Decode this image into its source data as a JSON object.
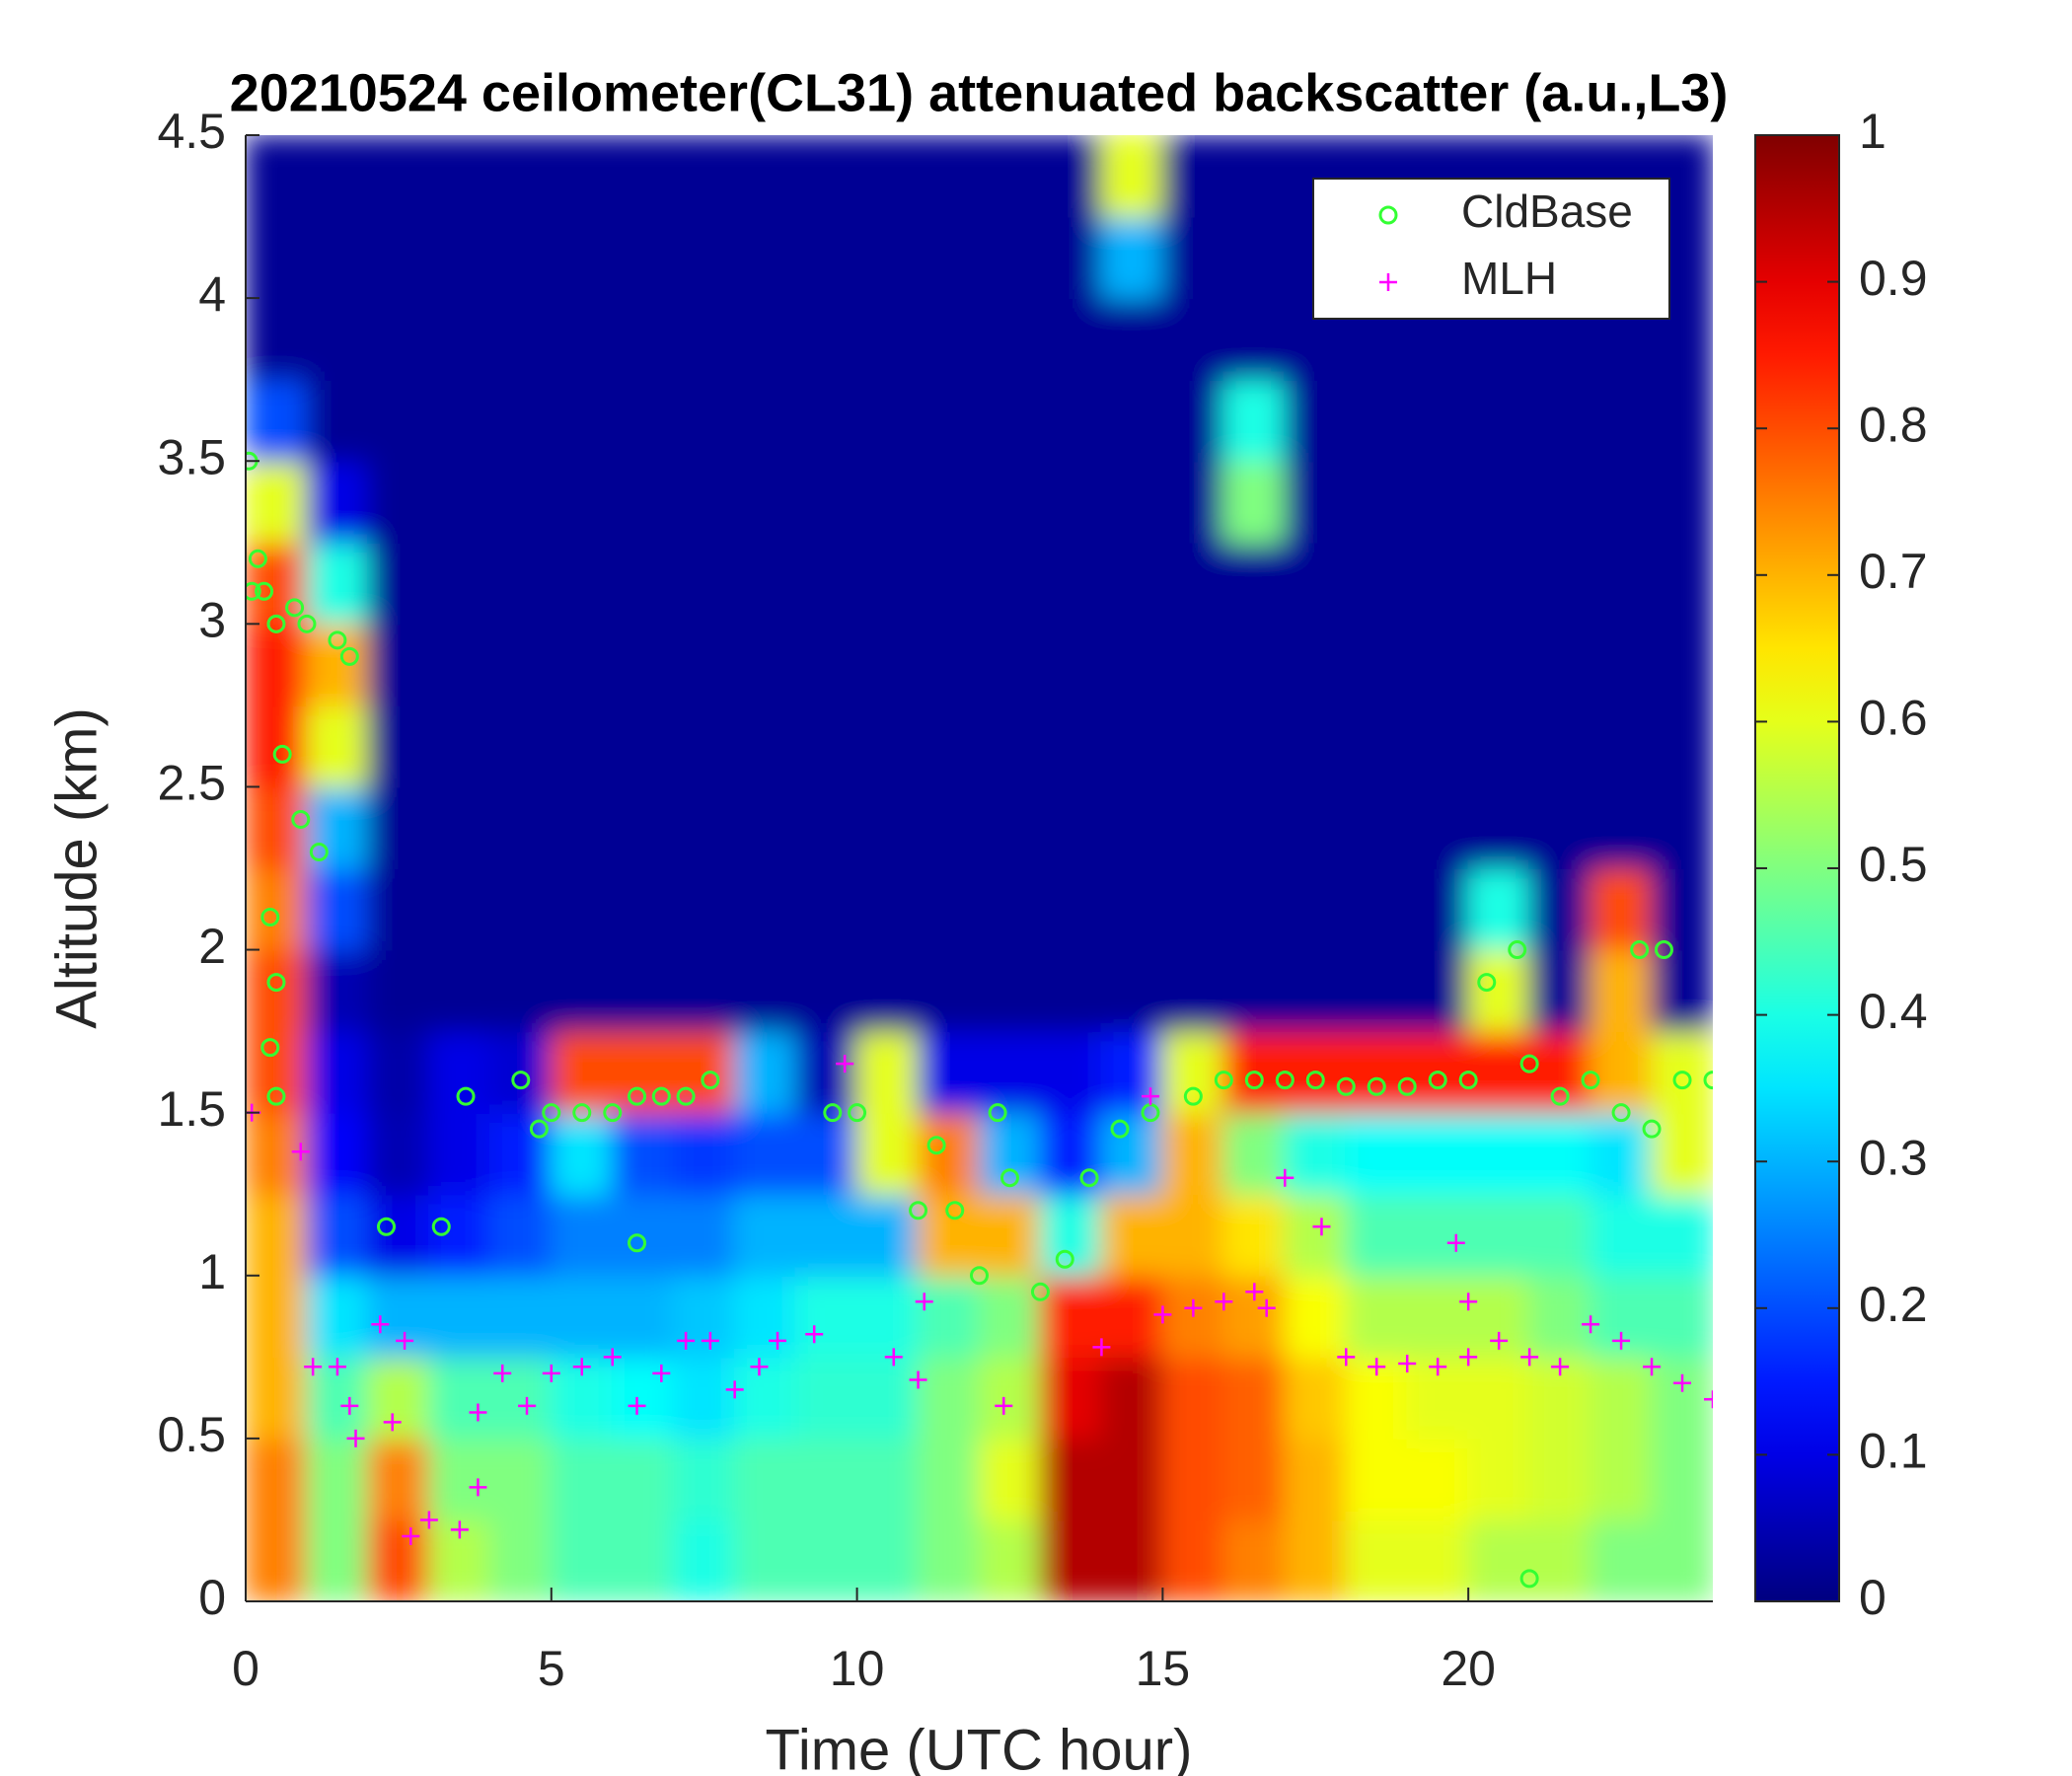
{
  "chart_data": {
    "type": "heatmap",
    "title": "20210524 ceilometer(CL31) attenuated backscatter (a.u.,L3)",
    "xlabel": "Time (UTC hour)",
    "ylabel": "Altitude (km)",
    "colormap": "jet",
    "xlim": [
      0,
      24
    ],
    "xticks": [
      0,
      5,
      10,
      15,
      20
    ],
    "ylim": [
      0,
      4.5
    ],
    "yticks": [
      0,
      0.5,
      1,
      1.5,
      2,
      2.5,
      3,
      3.5,
      4,
      4.5
    ],
    "clim": [
      0,
      1
    ],
    "cticks": [
      0,
      0.1,
      0.2,
      0.3,
      0.4,
      0.5,
      0.6,
      0.7,
      0.8,
      0.9,
      1
    ],
    "legend": "upper right",
    "x": [
      0.5,
      1.5,
      2.5,
      3.5,
      4.5,
      5.5,
      6.5,
      7.5,
      8.5,
      9.5,
      10.5,
      11.5,
      12.5,
      13.5,
      14.5,
      15.5,
      16.5,
      17.5,
      18.5,
      19.5,
      20.5,
      21.5,
      22.5,
      23.5
    ],
    "y": [
      0.125,
      0.375,
      0.625,
      0.875,
      1.125,
      1.375,
      1.625,
      1.875,
      2.125,
      2.375,
      2.625,
      2.875,
      3.125,
      3.375,
      3.625,
      3.875,
      4.125,
      4.375
    ],
    "z": [
      [
        0.75,
        0.5,
        0.8,
        0.55,
        0.5,
        0.45,
        0.45,
        0.4,
        0.45,
        0.45,
        0.45,
        0.5,
        0.55,
        0.95,
        0.95,
        0.8,
        0.75,
        0.7,
        0.6,
        0.6,
        0.55,
        0.55,
        0.5,
        0.5
      ],
      [
        0.75,
        0.5,
        0.75,
        0.5,
        0.5,
        0.45,
        0.45,
        0.42,
        0.45,
        0.45,
        0.45,
        0.5,
        0.6,
        0.95,
        0.95,
        0.8,
        0.78,
        0.7,
        0.62,
        0.62,
        0.6,
        0.58,
        0.55,
        0.5
      ],
      [
        0.7,
        0.45,
        0.55,
        0.45,
        0.45,
        0.4,
        0.38,
        0.35,
        0.4,
        0.42,
        0.42,
        0.5,
        0.55,
        0.9,
        0.95,
        0.8,
        0.78,
        0.68,
        0.62,
        0.6,
        0.6,
        0.58,
        0.55,
        0.5
      ],
      [
        0.7,
        0.35,
        0.3,
        0.3,
        0.3,
        0.3,
        0.3,
        0.32,
        0.35,
        0.4,
        0.4,
        0.45,
        0.5,
        0.85,
        0.85,
        0.75,
        0.72,
        0.62,
        0.55,
        0.55,
        0.55,
        0.5,
        0.45,
        0.45
      ],
      [
        0.7,
        0.2,
        0.1,
        0.15,
        0.2,
        0.25,
        0.25,
        0.25,
        0.3,
        0.3,
        0.3,
        0.7,
        0.7,
        0.4,
        0.7,
        0.7,
        0.65,
        0.55,
        0.45,
        0.45,
        0.45,
        0.45,
        0.4,
        0.4
      ],
      [
        0.75,
        0.12,
        0.05,
        0.1,
        0.15,
        0.35,
        0.2,
        0.18,
        0.2,
        0.2,
        0.6,
        0.75,
        0.3,
        0.15,
        0.3,
        0.7,
        0.5,
        0.4,
        0.38,
        0.38,
        0.38,
        0.38,
        0.35,
        0.6
      ],
      [
        0.8,
        0.1,
        0.04,
        0.1,
        0.08,
        0.8,
        0.8,
        0.8,
        0.3,
        0.05,
        0.6,
        0.1,
        0.1,
        0.1,
        0.15,
        0.6,
        0.85,
        0.85,
        0.85,
        0.85,
        0.85,
        0.85,
        0.7,
        0.6
      ],
      [
        0.8,
        0.05,
        0.02,
        0.02,
        0.02,
        0.02,
        0.02,
        0.02,
        0.02,
        0.02,
        0.02,
        0.02,
        0.02,
        0.02,
        0.02,
        0.02,
        0.02,
        0.02,
        0.02,
        0.02,
        0.6,
        0.02,
        0.7,
        0.02
      ],
      [
        0.75,
        0.2,
        0.02,
        0.02,
        0.02,
        0.02,
        0.02,
        0.02,
        0.02,
        0.02,
        0.02,
        0.02,
        0.02,
        0.02,
        0.02,
        0.02,
        0.02,
        0.02,
        0.02,
        0.02,
        0.4,
        0.02,
        0.8,
        0.02
      ],
      [
        0.8,
        0.3,
        0.02,
        0.02,
        0.02,
        0.02,
        0.02,
        0.02,
        0.02,
        0.02,
        0.02,
        0.02,
        0.02,
        0.02,
        0.02,
        0.02,
        0.02,
        0.02,
        0.02,
        0.02,
        0.02,
        0.02,
        0.02,
        0.02
      ],
      [
        0.85,
        0.6,
        0.02,
        0.02,
        0.02,
        0.02,
        0.02,
        0.02,
        0.02,
        0.02,
        0.02,
        0.02,
        0.02,
        0.02,
        0.02,
        0.02,
        0.02,
        0.02,
        0.02,
        0.02,
        0.02,
        0.02,
        0.02,
        0.02
      ],
      [
        0.85,
        0.7,
        0.02,
        0.02,
        0.02,
        0.02,
        0.02,
        0.02,
        0.02,
        0.02,
        0.02,
        0.02,
        0.02,
        0.02,
        0.02,
        0.02,
        0.02,
        0.02,
        0.02,
        0.02,
        0.02,
        0.02,
        0.02,
        0.02
      ],
      [
        0.8,
        0.4,
        0.02,
        0.02,
        0.02,
        0.02,
        0.02,
        0.02,
        0.02,
        0.02,
        0.02,
        0.02,
        0.02,
        0.02,
        0.02,
        0.02,
        0.02,
        0.02,
        0.02,
        0.02,
        0.02,
        0.02,
        0.02,
        0.02
      ],
      [
        0.6,
        0.1,
        0.02,
        0.02,
        0.02,
        0.02,
        0.02,
        0.02,
        0.02,
        0.02,
        0.02,
        0.02,
        0.02,
        0.02,
        0.02,
        0.02,
        0.5,
        0.02,
        0.02,
        0.02,
        0.02,
        0.02,
        0.02,
        0.02
      ],
      [
        0.2,
        0.02,
        0.02,
        0.02,
        0.02,
        0.02,
        0.02,
        0.02,
        0.02,
        0.02,
        0.02,
        0.02,
        0.02,
        0.02,
        0.02,
        0.02,
        0.4,
        0.02,
        0.02,
        0.02,
        0.02,
        0.02,
        0.02,
        0.02
      ],
      [
        0.02,
        0.02,
        0.02,
        0.02,
        0.02,
        0.02,
        0.02,
        0.02,
        0.02,
        0.02,
        0.02,
        0.02,
        0.02,
        0.02,
        0.02,
        0.02,
        0.02,
        0.02,
        0.02,
        0.02,
        0.02,
        0.02,
        0.02,
        0.02
      ],
      [
        0.02,
        0.02,
        0.02,
        0.02,
        0.02,
        0.02,
        0.02,
        0.02,
        0.02,
        0.02,
        0.02,
        0.02,
        0.02,
        0.02,
        0.3,
        0.02,
        0.02,
        0.02,
        0.02,
        0.02,
        0.02,
        0.02,
        0.02,
        0.02
      ],
      [
        0.02,
        0.02,
        0.02,
        0.02,
        0.02,
        0.02,
        0.02,
        0.02,
        0.02,
        0.02,
        0.02,
        0.02,
        0.02,
        0.02,
        0.6,
        0.02,
        0.02,
        0.02,
        0.02,
        0.02,
        0.02,
        0.02,
        0.02,
        0.02
      ]
    ],
    "series": [
      {
        "name": "CldBase",
        "color": "#33ff33",
        "marker": "circle",
        "x": [
          0.05,
          0.1,
          0.2,
          0.3,
          0.5,
          0.8,
          1.0,
          1.5,
          1.7,
          0.6,
          0.9,
          1.2,
          0.4,
          0.5,
          0.4,
          0.5,
          2.3,
          3.2,
          3.6,
          4.5,
          4.8,
          5.0,
          5.5,
          6.0,
          6.4,
          6.8,
          7.2,
          7.6,
          6.4,
          9.6,
          10.0,
          11.0,
          11.3,
          11.6,
          12.0,
          12.3,
          12.5,
          13.0,
          13.4,
          13.8,
          14.3,
          14.8,
          15.5,
          16.0,
          16.5,
          17.0,
          17.5,
          18.0,
          18.5,
          19.0,
          19.5,
          20.0,
          20.3,
          20.8,
          21.0,
          21.5,
          22.0,
          22.5,
          22.8,
          23.2,
          23.0,
          23.5,
          24.0,
          21.0
        ],
        "values": [
          3.5,
          3.1,
          3.2,
          3.1,
          3.0,
          3.05,
          3.0,
          2.95,
          2.9,
          2.6,
          2.4,
          2.3,
          2.1,
          1.9,
          1.7,
          1.55,
          1.15,
          1.15,
          1.55,
          1.6,
          1.45,
          1.5,
          1.5,
          1.5,
          1.55,
          1.55,
          1.55,
          1.6,
          1.1,
          1.5,
          1.5,
          1.2,
          1.4,
          1.2,
          1.0,
          1.5,
          1.3,
          0.95,
          1.05,
          1.3,
          1.45,
          1.5,
          1.55,
          1.6,
          1.6,
          1.6,
          1.6,
          1.58,
          1.58,
          1.58,
          1.6,
          1.6,
          1.9,
          2.0,
          1.65,
          1.55,
          1.6,
          1.5,
          2.0,
          2.0,
          1.45,
          1.6,
          1.6,
          0.07
        ]
      },
      {
        "name": "MLH",
        "color": "#ff00ff",
        "marker": "plus",
        "x": [
          0.1,
          0.9,
          1.1,
          1.5,
          1.7,
          1.8,
          2.2,
          2.4,
          2.6,
          2.7,
          3.0,
          3.5,
          3.8,
          3.8,
          4.2,
          4.6,
          5.0,
          5.5,
          6.0,
          6.4,
          6.8,
          7.2,
          7.6,
          8.0,
          8.4,
          8.7,
          9.3,
          10.6,
          11.0,
          11.1,
          12.4,
          14.0,
          15.0,
          15.5,
          16.0,
          16.5,
          16.7,
          17.0,
          17.6,
          18.0,
          18.5,
          19.0,
          19.5,
          20.0,
          20.5,
          21.0,
          21.5,
          22.0,
          22.5,
          23.0,
          23.5,
          24.0,
          20.0,
          19.8,
          9.8,
          14.8
        ],
        "values": [
          1.5,
          1.38,
          0.72,
          0.72,
          0.6,
          0.5,
          0.85,
          0.55,
          0.8,
          0.2,
          0.25,
          0.22,
          0.35,
          0.58,
          0.7,
          0.6,
          0.7,
          0.72,
          0.75,
          0.6,
          0.7,
          0.8,
          0.8,
          0.65,
          0.72,
          0.8,
          0.82,
          0.75,
          0.68,
          0.92,
          0.6,
          0.78,
          0.88,
          0.9,
          0.92,
          0.95,
          0.9,
          1.3,
          1.15,
          0.75,
          0.72,
          0.73,
          0.72,
          0.75,
          0.8,
          0.75,
          0.72,
          0.85,
          0.8,
          0.72,
          0.67,
          0.62,
          0.92,
          1.1,
          1.65,
          1.55
        ]
      }
    ]
  }
}
